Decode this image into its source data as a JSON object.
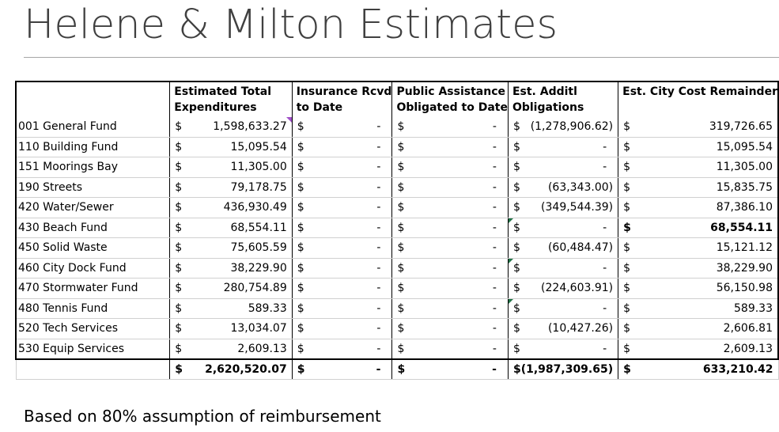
{
  "title": "Helene & Milton Estimates",
  "note": "Based on 80% assumption of reimbursement",
  "headers": {
    "col1_line1": "Estimated Total",
    "col1_line2": "Expenditures",
    "col2_line1": "Insurance Rcvd",
    "col2_line2": "to Date",
    "col3_line1": "Public Assistance",
    "col3_line2": "Obligated to Date",
    "col4_line1": "Est. Additl",
    "col4_line2": "Obligations",
    "col5_line1": "Est. City Cost Remainder",
    "col5_line2": ""
  },
  "currency": "$",
  "dash": "-",
  "rows": [
    {
      "name": "001 General Fund",
      "exp": "1,598,633.27",
      "ins": "-",
      "pa": "-",
      "addl": "(1,278,906.62)",
      "remain": "319,726.65"
    },
    {
      "name": "110 Building Fund",
      "exp": "15,095.54",
      "ins": "-",
      "pa": "-",
      "addl": "-",
      "remain": "15,095.54"
    },
    {
      "name": "151 Moorings Bay",
      "exp": "11,305.00",
      "ins": "-",
      "pa": "-",
      "addl": "-",
      "remain": "11,305.00"
    },
    {
      "name": "190 Streets",
      "exp": "79,178.75",
      "ins": "-",
      "pa": "-",
      "addl": "(63,343.00)",
      "remain": "15,835.75"
    },
    {
      "name": "420 Water/Sewer",
      "exp": "436,930.49",
      "ins": "-",
      "pa": "-",
      "addl": "(349,544.39)",
      "remain": "87,386.10"
    },
    {
      "name": "430 Beach Fund",
      "exp": "68,554.11",
      "ins": "-",
      "pa": "-",
      "addl": "-",
      "remain": "68,554.11"
    },
    {
      "name": "450 Solid Waste",
      "exp": "75,605.59",
      "ins": "-",
      "pa": "-",
      "addl": "(60,484.47)",
      "remain": "15,121.12"
    },
    {
      "name": "460 City Dock Fund",
      "exp": "38,229.90",
      "ins": "-",
      "pa": "-",
      "addl": "-",
      "remain": "38,229.90"
    },
    {
      "name": "470 Stormwater Fund",
      "exp": "280,754.89",
      "ins": "-",
      "pa": "-",
      "addl": "(224,603.91)",
      "remain": "56,150.98"
    },
    {
      "name": "480 Tennis Fund",
      "exp": "589.33",
      "ins": "-",
      "pa": "-",
      "addl": "-",
      "remain": "589.33"
    },
    {
      "name": "520 Tech Services",
      "exp": "13,034.07",
      "ins": "-",
      "pa": "-",
      "addl": "(10,427.26)",
      "remain": "2,606.81"
    },
    {
      "name": "530 Equip Services",
      "exp": "2,609.13",
      "ins": "-",
      "pa": "-",
      "addl": "-",
      "remain": "2,609.13"
    }
  ],
  "totals": {
    "exp": "2,620,520.07",
    "ins": "-",
    "pa": "-",
    "addl": "(1,987,309.65)",
    "remain": "633,210.42"
  }
}
